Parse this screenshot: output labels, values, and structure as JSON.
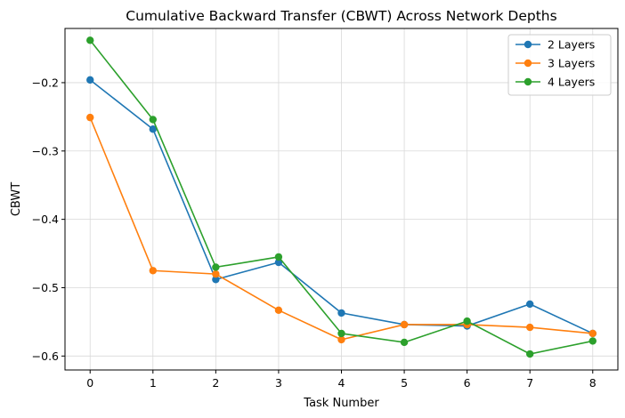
{
  "chart_data": {
    "type": "line",
    "title": "Cumulative Backward Transfer (CBWT) Across Network Depths",
    "xlabel": "Task Number",
    "ylabel": "CBWT",
    "x": [
      0,
      1,
      2,
      3,
      4,
      5,
      6,
      7,
      8
    ],
    "xlim": [
      -0.4,
      8.4
    ],
    "ylim": [
      -0.6204,
      -0.1207
    ],
    "xticks": [
      0,
      1,
      2,
      3,
      4,
      5,
      6,
      7,
      8
    ],
    "yticks": [
      -0.2,
      -0.3,
      -0.4,
      -0.5,
      -0.6
    ],
    "ytick_labels": [
      "−0.2",
      "−0.3",
      "−0.4",
      "−0.5",
      "−0.6"
    ],
    "grid": true,
    "legend_position": "top-right",
    "series": [
      {
        "name": "2 Layers",
        "color": "#1f77b4",
        "values": [
          -0.196,
          -0.268,
          -0.488,
          -0.463,
          -0.537,
          -0.554,
          -0.556,
          -0.524,
          -0.567
        ]
      },
      {
        "name": "3 Layers",
        "color": "#ff7f0e",
        "values": [
          -0.251,
          -0.475,
          -0.48,
          -0.533,
          -0.576,
          -0.554,
          -0.554,
          -0.558,
          -0.567
        ]
      },
      {
        "name": "4 Layers",
        "color": "#2ca02c",
        "values": [
          -0.138,
          -0.254,
          -0.47,
          -0.455,
          -0.567,
          -0.58,
          -0.549,
          -0.597,
          -0.578
        ]
      }
    ]
  }
}
